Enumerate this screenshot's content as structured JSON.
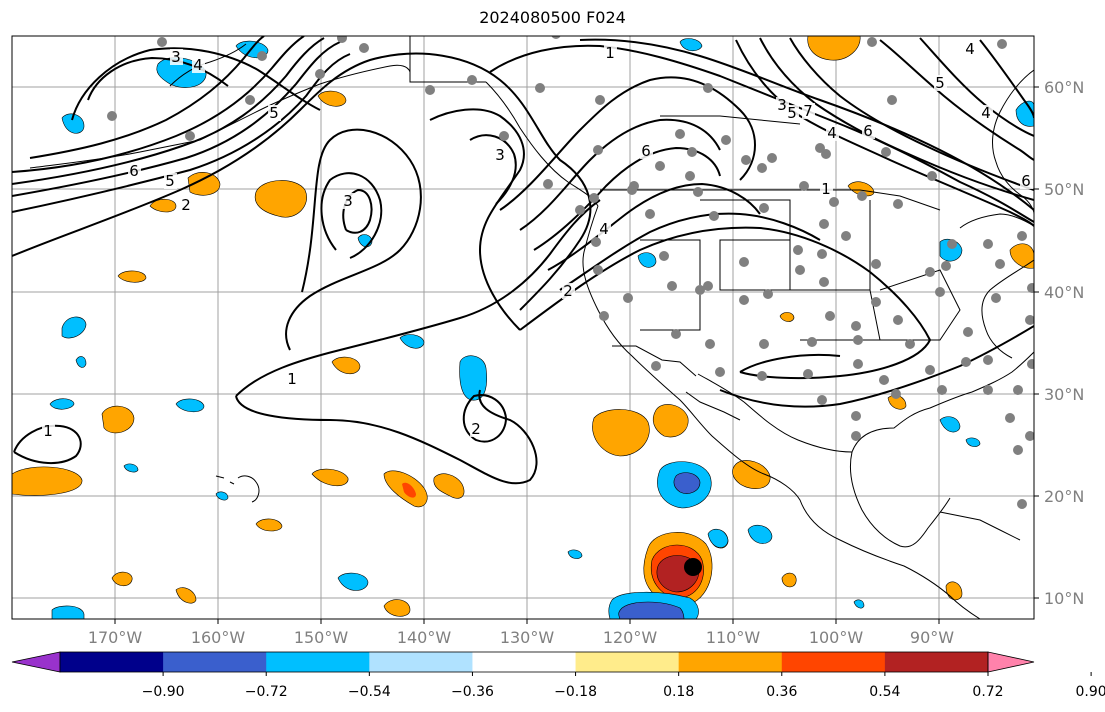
{
  "title": "2024080500 F024",
  "lon_labels": [
    "170°W",
    "160°W",
    "150°W",
    "140°W",
    "130°W",
    "120°W",
    "110°W",
    "100°W",
    "90°W"
  ],
  "lat_labels": [
    "60°N",
    "50°N",
    "40°N",
    "30°N",
    "20°N",
    "10°N"
  ],
  "colorbar": {
    "ticks": [
      "−0.90",
      "−0.72",
      "−0.54",
      "−0.36",
      "−0.18",
      "0.18",
      "0.36",
      "0.54",
      "0.72",
      "0.90"
    ],
    "colors": [
      "#9932cc",
      "#00008b",
      "#3a5fcd",
      "#00bfff",
      "#b0e2ff",
      "#ffffff",
      "#ffec8b",
      "#ffa500",
      "#ff4500",
      "#b22222",
      "#ff82ab"
    ]
  },
  "contour_labels": [
    "1",
    "1",
    "1",
    "1",
    "2",
    "2",
    "2",
    "3",
    "3",
    "3",
    "3",
    "4",
    "4",
    "4",
    "4",
    "4",
    "5",
    "5",
    "5",
    "5",
    "6",
    "6",
    "6",
    "6",
    "7"
  ],
  "colors": {
    "station": "#808080",
    "marker": "#000000",
    "coast": "#000000"
  }
}
